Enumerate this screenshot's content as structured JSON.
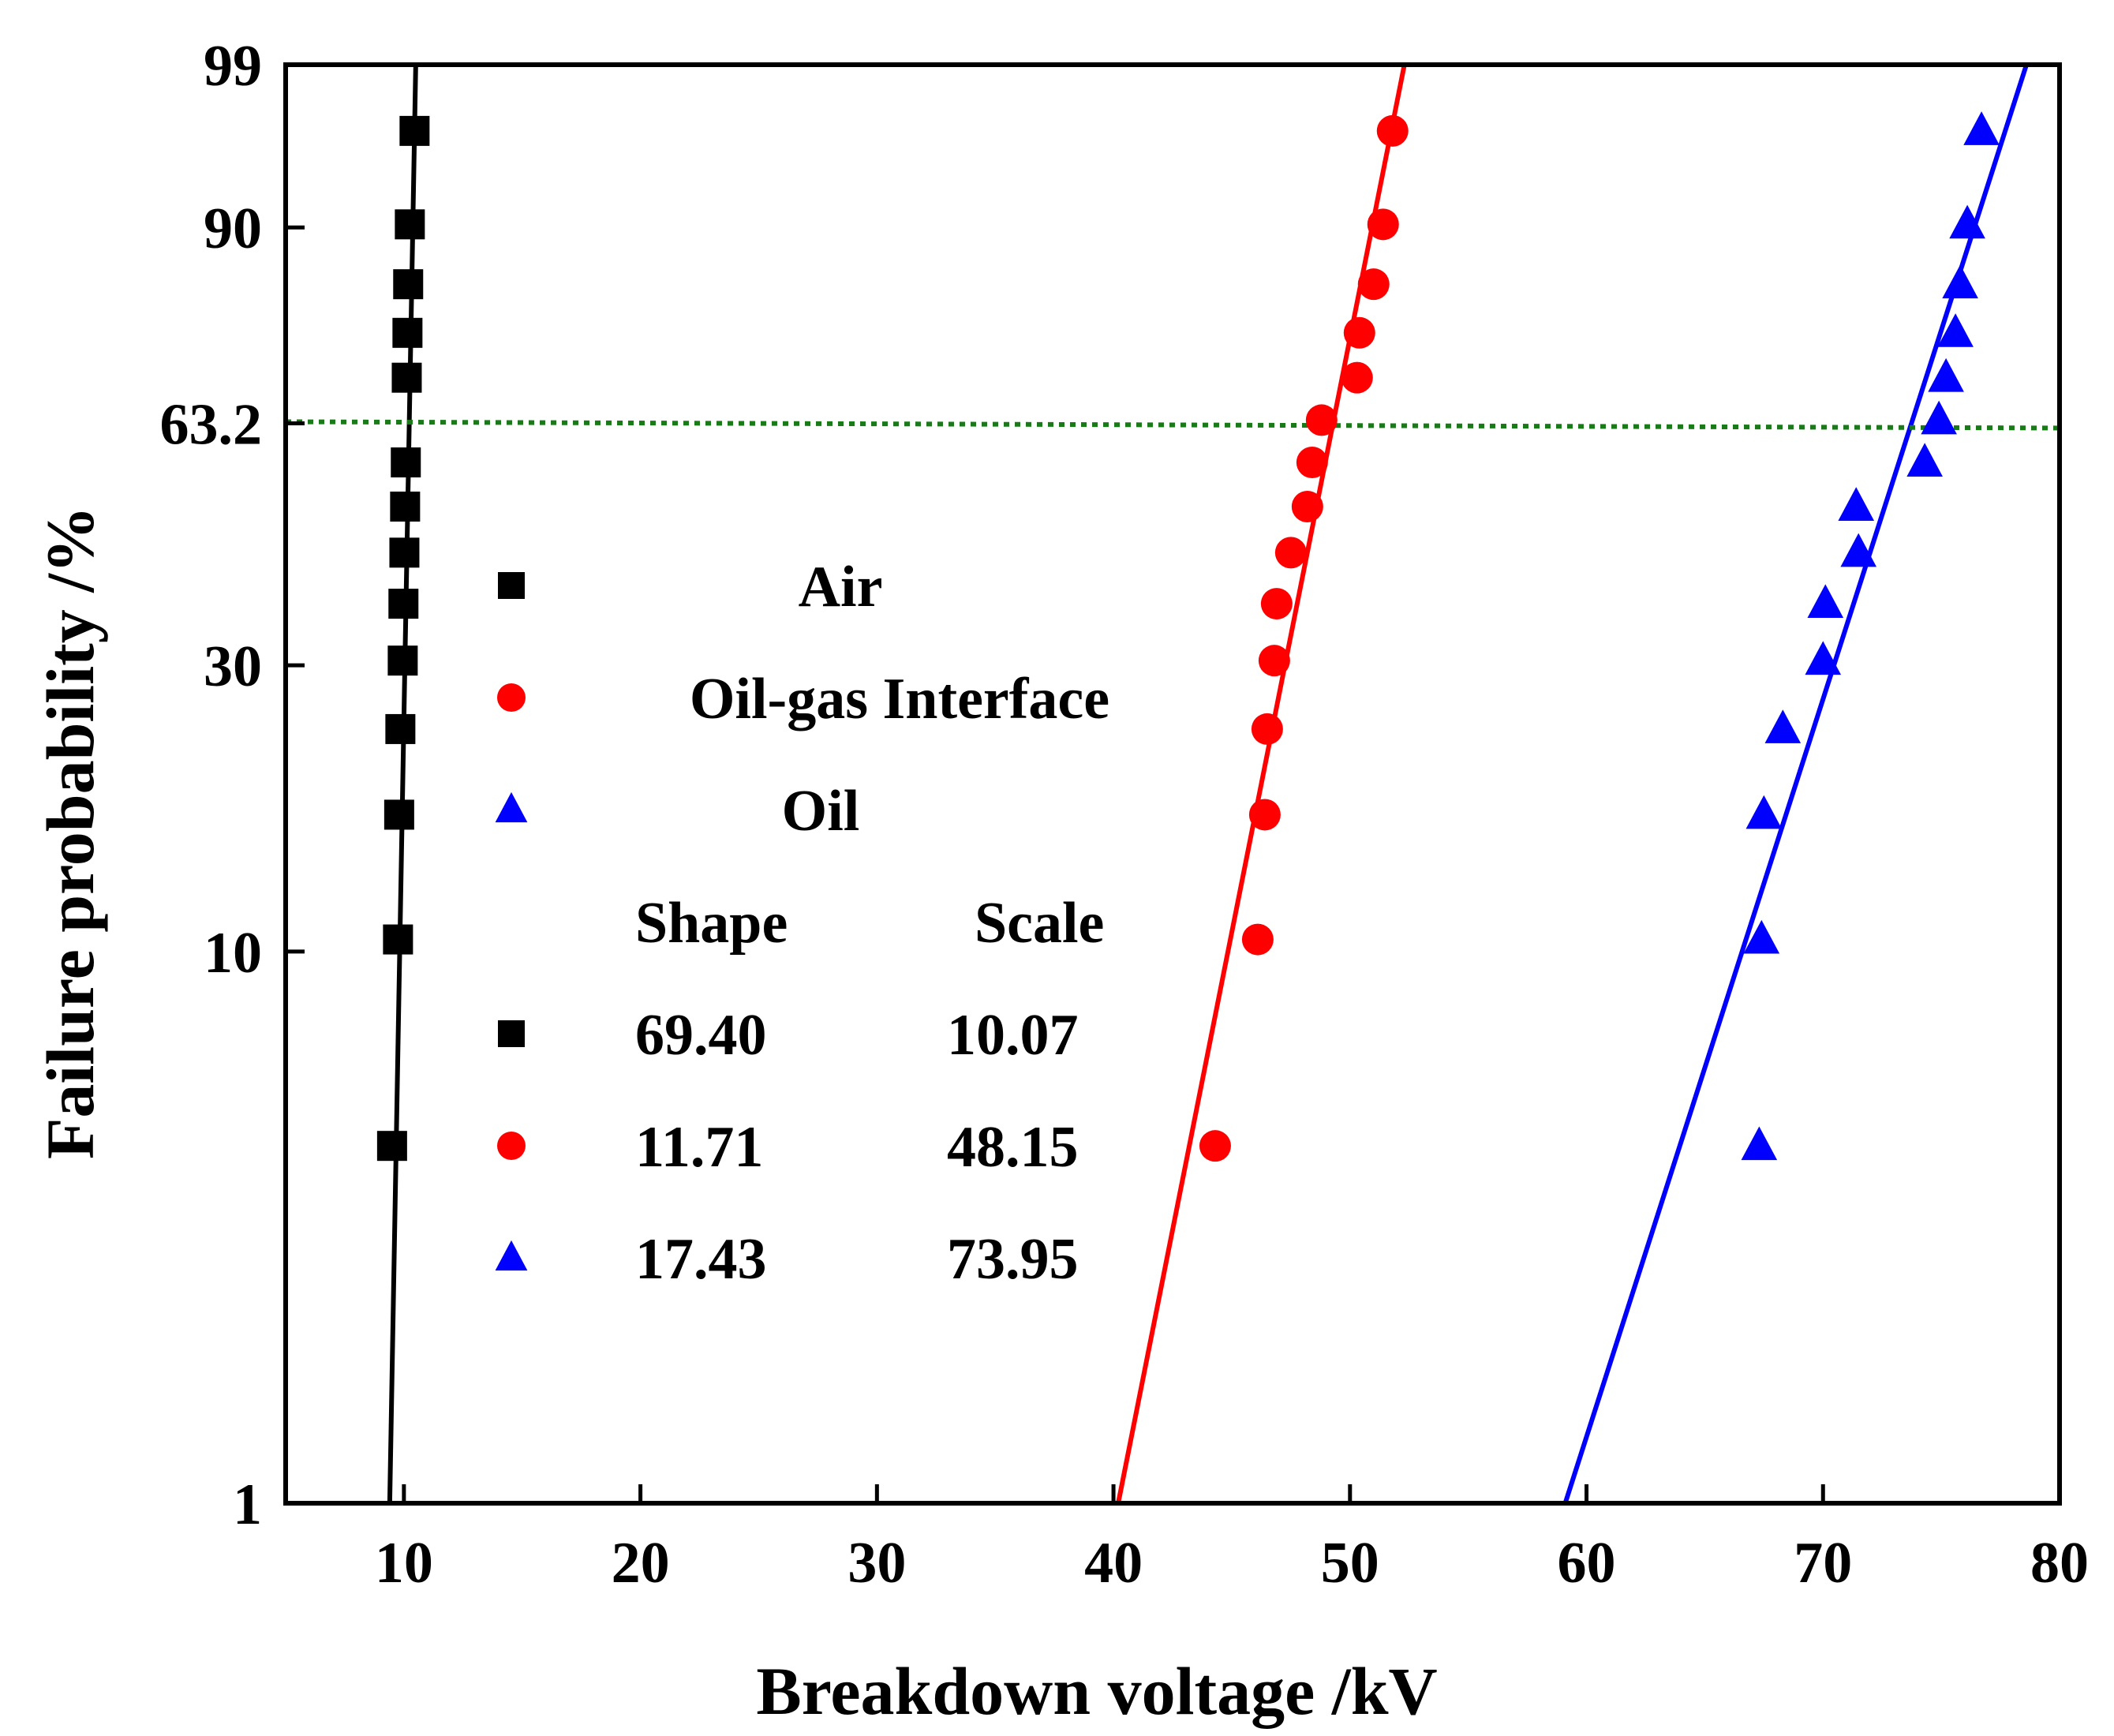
{
  "chart_data": {
    "type": "scatter",
    "title": "",
    "xlabel": "Breakdown voltage /kV",
    "ylabel": "Failure probability /%",
    "xlim": [
      5,
      80
    ],
    "xticks": [
      10,
      20,
      30,
      40,
      50,
      60,
      70,
      80
    ],
    "ylim": [
      1,
      99
    ],
    "yscale": "weibull",
    "yticks": [
      1,
      10,
      30,
      63.2,
      90,
      99
    ],
    "ytick_labels": [
      "1",
      "10",
      "30",
      "63.2",
      "90",
      "99"
    ],
    "reference_line": {
      "y": 63.2,
      "style": "dotted",
      "color": "#1a7a1a"
    },
    "series": [
      {
        "name": "Air",
        "marker": "square",
        "color": "#000000",
        "shape": "69.40",
        "scale": "10.07",
        "fit_line": {
          "from": [
            9.4,
            1
          ],
          "to": [
            10.5,
            99
          ]
        },
        "points": [
          {
            "x": 9.5,
            "y": 4.5
          },
          {
            "x": 9.75,
            "y": 10.5
          },
          {
            "x": 9.8,
            "y": 17.2
          },
          {
            "x": 9.85,
            "y": 23.8
          },
          {
            "x": 9.95,
            "y": 30.5
          },
          {
            "x": 9.98,
            "y": 37.1
          },
          {
            "x": 10.02,
            "y": 43.8
          },
          {
            "x": 10.05,
            "y": 50.4
          },
          {
            "x": 10.08,
            "y": 57.1
          },
          {
            "x": 10.12,
            "y": 70.3
          },
          {
            "x": 10.15,
            "y": 77.0
          },
          {
            "x": 10.18,
            "y": 83.6
          },
          {
            "x": 10.25,
            "y": 90.3
          },
          {
            "x": 10.45,
            "y": 96.9
          }
        ]
      },
      {
        "name": "Oil-gas Interface",
        "marker": "circle",
        "color": "#ff0000",
        "shape": "11.71",
        "scale": "48.15",
        "fit_line": {
          "from": [
            40.2,
            1
          ],
          "to": [
            52.3,
            99
          ]
        },
        "points": [
          {
            "x": 44.3,
            "y": 4.5
          },
          {
            "x": 46.1,
            "y": 10.5
          },
          {
            "x": 46.4,
            "y": 17.2
          },
          {
            "x": 46.5,
            "y": 23.8
          },
          {
            "x": 46.8,
            "y": 30.5
          },
          {
            "x": 46.9,
            "y": 37.1
          },
          {
            "x": 47.5,
            "y": 43.8
          },
          {
            "x": 48.2,
            "y": 50.4
          },
          {
            "x": 48.4,
            "y": 57.1
          },
          {
            "x": 48.8,
            "y": 63.7
          },
          {
            "x": 50.3,
            "y": 70.3
          },
          {
            "x": 50.4,
            "y": 77.0
          },
          {
            "x": 51.0,
            "y": 83.6
          },
          {
            "x": 51.4,
            "y": 90.3
          },
          {
            "x": 51.8,
            "y": 96.9
          }
        ]
      },
      {
        "name": "Oil",
        "marker": "triangle",
        "color": "#0000ff",
        "shape": "17.43",
        "scale": "73.95",
        "fit_line": {
          "from": [
            59.1,
            1
          ],
          "to": [
            78.6,
            99
          ]
        },
        "points": [
          {
            "x": 67.3,
            "y": 4.5
          },
          {
            "x": 67.4,
            "y": 10.5
          },
          {
            "x": 67.5,
            "y": 17.2
          },
          {
            "x": 68.3,
            "y": 23.8
          },
          {
            "x": 70.0,
            "y": 30.5
          },
          {
            "x": 70.1,
            "y": 37.1
          },
          {
            "x": 71.5,
            "y": 43.8
          },
          {
            "x": 71.4,
            "y": 50.4
          },
          {
            "x": 74.3,
            "y": 57.1
          },
          {
            "x": 74.9,
            "y": 63.7
          },
          {
            "x": 75.2,
            "y": 70.3
          },
          {
            "x": 75.6,
            "y": 77.0
          },
          {
            "x": 75.8,
            "y": 83.6
          },
          {
            "x": 76.1,
            "y": 90.3
          },
          {
            "x": 76.7,
            "y": 96.9
          }
        ]
      }
    ],
    "legend": {
      "placement": "left-center",
      "header_shape": "Shape",
      "header_scale": "Scale"
    }
  }
}
